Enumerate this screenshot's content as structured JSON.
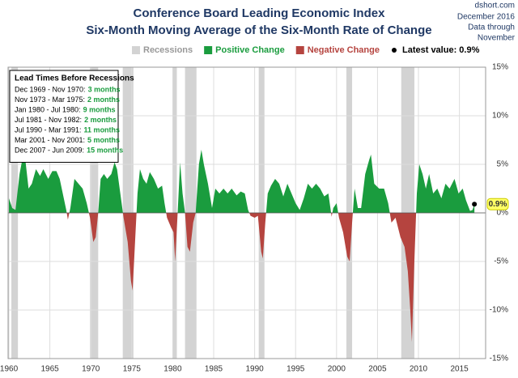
{
  "chart_data": {
    "type": "area",
    "title": "Conference Board Leading Economic Index",
    "subtitle": "Six-Month  Moving Average of the Six-Month Rate of Change",
    "source": "dshort.com",
    "date_note": [
      "December 2016",
      "Data through",
      "November"
    ],
    "legend": [
      {
        "label": "Recessions",
        "color": "#d3d3d3",
        "marker": "square"
      },
      {
        "label": "Positive Change",
        "color": "#1a9c3e",
        "marker": "square"
      },
      {
        "label": "Negative Change",
        "color": "#b5443f",
        "marker": "square"
      },
      {
        "label": "Latest value: 0.9%",
        "color": "#000000",
        "marker": "circle"
      }
    ],
    "positive_color": "#1a9c3e",
    "negative_color": "#b5443f",
    "recession_color": "#d3d3d3",
    "recessions": [
      {
        "start": 1960.3,
        "end": 1961.1
      },
      {
        "start": 1969.9,
        "end": 1970.9
      },
      {
        "start": 1973.9,
        "end": 1975.2
      },
      {
        "start": 1980.0,
        "end": 1980.5
      },
      {
        "start": 1981.5,
        "end": 1982.9
      },
      {
        "start": 1990.5,
        "end": 1991.2
      },
      {
        "start": 2001.2,
        "end": 2001.9
      },
      {
        "start": 2007.9,
        "end": 2009.5
      }
    ],
    "x": [
      1960.0,
      1960.4,
      1960.8,
      1961.3,
      1961.7,
      1962.0,
      1962.4,
      1962.8,
      1963.3,
      1963.8,
      1964.2,
      1964.8,
      1965.3,
      1965.8,
      1966.2,
      1966.7,
      1967.0,
      1967.2,
      1967.5,
      1968.0,
      1968.5,
      1969.0,
      1969.5,
      1969.9,
      1970.3,
      1970.6,
      1970.9,
      1971.2,
      1971.6,
      1972.0,
      1972.5,
      1972.9,
      1973.2,
      1973.6,
      1974.0,
      1974.5,
      1974.9,
      1975.1,
      1975.4,
      1975.7,
      1976.0,
      1976.4,
      1976.8,
      1977.2,
      1977.7,
      1978.2,
      1978.7,
      1979.0,
      1979.3,
      1979.8,
      1980.1,
      1980.3,
      1980.6,
      1980.9,
      1981.2,
      1981.5,
      1981.8,
      1982.1,
      1982.5,
      1982.8,
      1983.2,
      1983.5,
      1983.8,
      1984.3,
      1984.8,
      1985.2,
      1985.7,
      1986.2,
      1986.7,
      1987.2,
      1987.8,
      1988.3,
      1988.8,
      1989.2,
      1989.5,
      1990.0,
      1990.4,
      1990.8,
      1991.0,
      1991.3,
      1991.6,
      1992.0,
      1992.5,
      1993.0,
      1993.5,
      1994.0,
      1994.5,
      1995.0,
      1995.5,
      1996.0,
      1996.5,
      1997.0,
      1997.5,
      1998.0,
      1998.5,
      1999.0,
      1999.4,
      1999.6,
      2000.0,
      2000.3,
      2000.8,
      2001.3,
      2001.6,
      2001.9,
      2002.2,
      2002.6,
      2003.0,
      2003.5,
      2004.0,
      2004.2,
      2004.6,
      2005.2,
      2005.8,
      2006.3,
      2006.7,
      2007.2,
      2007.8,
      2008.3,
      2008.7,
      2009.0,
      2009.2,
      2009.5,
      2009.8,
      2010.1,
      2010.5,
      2010.9,
      2011.3,
      2011.8,
      2012.3,
      2012.8,
      2013.3,
      2013.8,
      2014.4,
      2014.9,
      2015.4,
      2015.8,
      2016.3,
      2016.6,
      2016.83
    ],
    "values": [
      1.5,
      0.5,
      0.3,
      4,
      5.8,
      5.5,
      2.5,
      3,
      4.5,
      3.8,
      4.5,
      3.5,
      4.3,
      4.3,
      3.5,
      1.5,
      0.3,
      -0.7,
      0.5,
      3.5,
      3,
      2.5,
      1,
      -0.5,
      -3,
      -2.5,
      0,
      3.5,
      4,
      3.5,
      4,
      5.2,
      4.5,
      2,
      -0.5,
      -3,
      -7,
      -8,
      -3,
      2,
      4.5,
      3.5,
      3,
      4.2,
      3.5,
      2.5,
      2.8,
      1,
      -0.5,
      -1.5,
      -2,
      -5,
      0,
      5.2,
      2,
      0,
      -3.5,
      -4,
      -1,
      0,
      5,
      6.5,
      5,
      3,
      0.5,
      2.5,
      2,
      2.5,
      2,
      2.5,
      1.8,
      2.2,
      2,
      0.3,
      -0.3,
      -0.5,
      -0.3,
      -4,
      -4.7,
      -1,
      2,
      2.8,
      3.5,
      3,
      1.7,
      3,
      2,
      1,
      0.3,
      1.5,
      3,
      2.5,
      3,
      2.5,
      1.7,
      2,
      -0.4,
      0.5,
      1,
      -0.5,
      -2,
      -4.5,
      -5,
      -1,
      2.5,
      0.5,
      0.5,
      4,
      5.5,
      6,
      3,
      2.5,
      2.5,
      1,
      -1,
      -0.5,
      -2.5,
      -3.5,
      -6,
      -10,
      -13.3,
      -5,
      2,
      5,
      4,
      2.5,
      4,
      2,
      2.5,
      1.5,
      3,
      2.5,
      3.5,
      2,
      2.5,
      1.3,
      0.2,
      0.3,
      0.9
    ],
    "latest": {
      "x": 2016.83,
      "value": 0.9,
      "label": "0.9%"
    },
    "lead_box": {
      "title": "Lead Times Before Recessions",
      "rows": [
        {
          "period": "Dec 1969 - Nov 1970:",
          "lead": "3 months"
        },
        {
          "period": "Nov 1973 - Mar 1975:",
          "lead": "2 months"
        },
        {
          "period": "Jan 1980 - Jul 1980:",
          "lead": "9 months"
        },
        {
          "period": "Jul 1981 - Nov 1982:",
          "lead": "2 months"
        },
        {
          "period": "Jul 1990 - Mar 1991:",
          "lead": "11 months"
        },
        {
          "period": "Mar 2001 - Nov 2001:",
          "lead": "5 months"
        },
        {
          "period": "Dec 2007 - Jun 2009:",
          "lead": "15 months"
        }
      ]
    },
    "xlim": [
      1959.9,
      2018.2
    ],
    "xticks": [
      1960,
      1965,
      1970,
      1975,
      1980,
      1985,
      1990,
      1995,
      2000,
      2005,
      2010,
      2015
    ],
    "ylim": [
      -15,
      15
    ],
    "yticks": [
      {
        "value": 15,
        "label": "15%"
      },
      {
        "value": 10,
        "label": "10%"
      },
      {
        "value": 5,
        "label": "5%"
      },
      {
        "value": 0,
        "label": "0%"
      },
      {
        "value": -5,
        "label": "-5%"
      },
      {
        "value": -10,
        "label": "-10%"
      },
      {
        "value": -15,
        "label": "-15%"
      }
    ],
    "grid": true
  }
}
